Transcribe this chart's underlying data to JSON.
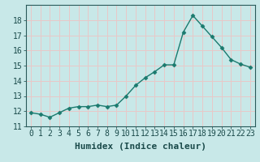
{
  "x": [
    0,
    1,
    2,
    3,
    4,
    5,
    6,
    7,
    8,
    9,
    10,
    11,
    12,
    13,
    14,
    15,
    16,
    17,
    18,
    19,
    20,
    21,
    22,
    23
  ],
  "y": [
    11.9,
    11.8,
    11.6,
    11.9,
    12.2,
    12.3,
    12.3,
    12.4,
    12.3,
    12.4,
    13.0,
    13.7,
    14.2,
    14.6,
    15.05,
    15.05,
    17.2,
    18.3,
    17.6,
    16.9,
    16.2,
    15.4,
    15.1,
    14.9
  ],
  "line_color": "#1a7a6e",
  "marker": "D",
  "marker_size": 2.5,
  "bg_color": "#c8e8e8",
  "plot_bg_color": "#c8e8e8",
  "grid_color": "#e8c8c8",
  "xlabel": "Humidex (Indice chaleur)",
  "ylabel": "",
  "xlim": [
    -0.5,
    23.5
  ],
  "ylim": [
    11,
    19
  ],
  "yticks": [
    11,
    12,
    13,
    14,
    15,
    16,
    17,
    18
  ],
  "xtick_labels": [
    "0",
    "1",
    "2",
    "3",
    "4",
    "5",
    "6",
    "7",
    "8",
    "9",
    "10",
    "11",
    "12",
    "13",
    "14",
    "15",
    "16",
    "17",
    "18",
    "19",
    "20",
    "21",
    "22",
    "23"
  ],
  "xlabel_fontsize": 8,
  "tick_fontsize": 7,
  "line_width": 1.0
}
